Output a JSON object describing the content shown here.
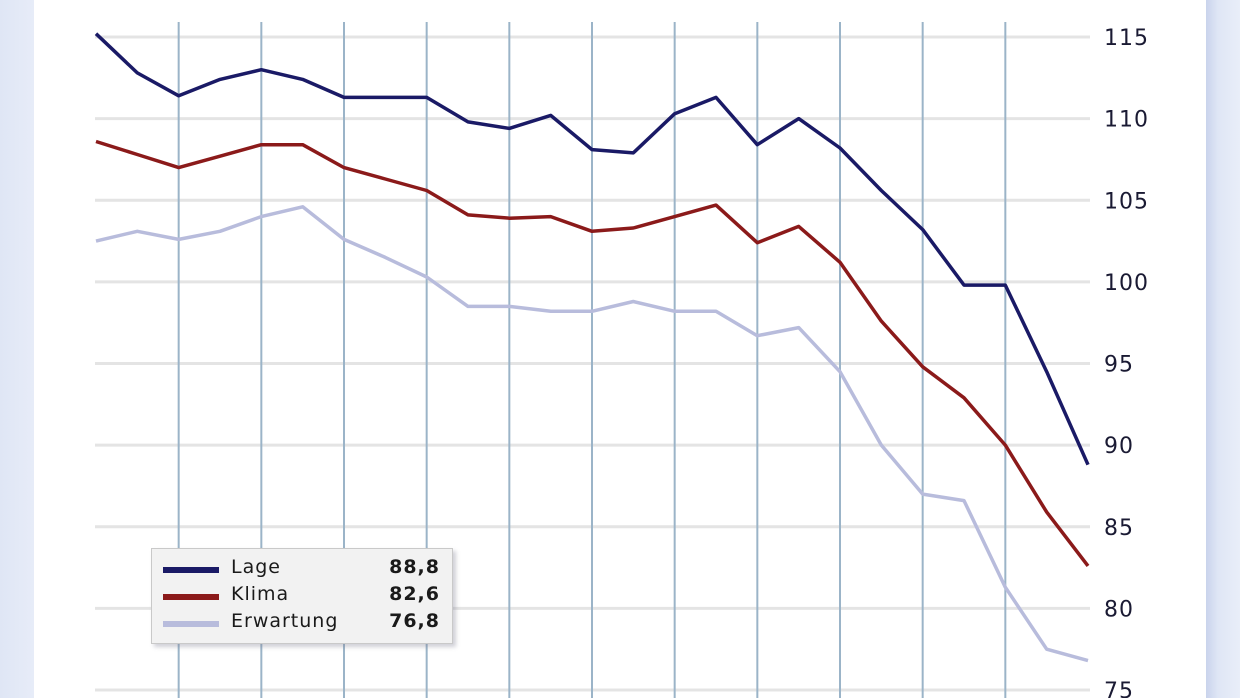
{
  "chart_data": {
    "type": "line",
    "x_count": 25,
    "y_ticks": [
      "115",
      "110",
      "105",
      "100",
      "95",
      "90",
      "85",
      "80",
      "75"
    ],
    "ylim": [
      75,
      116
    ],
    "y_axis_side": "right",
    "grid": true,
    "legend_placement": "bottom-left",
    "series": [
      {
        "name": "Lage",
        "latest_value": "88,8",
        "color": "#1a1a66",
        "values": [
          115.2,
          112.8,
          111.4,
          112.4,
          113.0,
          112.4,
          111.3,
          111.3,
          111.3,
          109.8,
          109.4,
          110.2,
          108.1,
          107.9,
          110.3,
          111.3,
          108.4,
          110.0,
          108.2,
          105.6,
          103.2,
          99.8,
          99.8,
          94.5,
          88.8
        ]
      },
      {
        "name": "Klima",
        "latest_value": "82,6",
        "color": "#8b1a1a",
        "values": [
          108.6,
          107.8,
          107.0,
          107.7,
          108.4,
          108.4,
          107.0,
          106.3,
          105.6,
          104.1,
          103.9,
          104.0,
          103.1,
          103.3,
          104.0,
          104.7,
          102.4,
          103.4,
          101.2,
          97.6,
          94.8,
          92.9,
          90.0,
          85.9,
          82.6
        ]
      },
      {
        "name": "Erwartung",
        "latest_value": "76,8",
        "color": "#b8bcdc",
        "values": [
          102.5,
          103.1,
          102.6,
          103.1,
          104.0,
          104.6,
          102.6,
          101.5,
          100.3,
          98.5,
          98.5,
          98.2,
          98.2,
          98.8,
          98.2,
          98.2,
          96.7,
          97.2,
          94.5,
          90.0,
          87.0,
          86.6,
          81.3,
          77.5,
          76.8
        ]
      }
    ]
  }
}
